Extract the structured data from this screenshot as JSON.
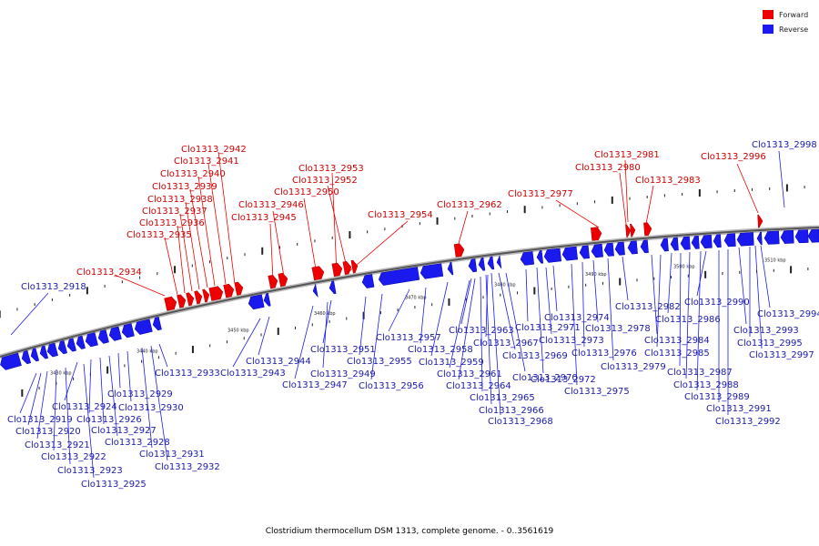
{
  "legend": {
    "forward": {
      "label": "Forward",
      "color": "#ee0000"
    },
    "reverse": {
      "label": "Reverse",
      "color": "#1a1aee"
    }
  },
  "caption": "Clostridium thermocellum DSM 1313, complete genome. - 0..3561619",
  "axis_ticks": [
    "3430 kbp",
    "3440 kbp",
    "3450 kbp",
    "3460 kbp",
    "3470 kbp",
    "3480 kbp",
    "3490 kbp",
    "3500 kbp",
    "3510 kbp"
  ],
  "genes_forward": [
    "Clo1313_2942",
    "Clo1313_2941",
    "Clo1313_2940",
    "Clo1313_2939",
    "Clo1313_2938",
    "Clo1313_2937",
    "Clo1313_2936",
    "Clo1313_2935",
    "Clo1313_2934",
    "Clo1313_2946",
    "Clo1313_2945",
    "Clo1313_2953",
    "Clo1313_2952",
    "Clo1313_2950",
    "Clo1313_2954",
    "Clo1313_2962",
    "Clo1313_2981",
    "Clo1313_2980",
    "Clo1313_2977",
    "Clo1313_2983",
    "Clo1313_2996"
  ],
  "genes_reverse": [
    "Clo1313_2998",
    "Clo1313_2918",
    "Clo1313_2919",
    "Clo1313_2920",
    "Clo1313_2921",
    "Clo1313_2922",
    "Clo1313_2923",
    "Clo1313_2924",
    "Clo1313_2925",
    "Clo1313_2926",
    "Clo1313_2927",
    "Clo1313_2928",
    "Clo1313_2929",
    "Clo1313_2930",
    "Clo1313_2931",
    "Clo1313_2932",
    "Clo1313_2933",
    "Clo1313_2943",
    "Clo1313_2944",
    "Clo1313_2947",
    "Clo1313_2949",
    "Clo1313_2951",
    "Clo1313_2955",
    "Clo1313_2956",
    "Clo1313_2957",
    "Clo1313_2958",
    "Clo1313_2959",
    "Clo1313_2961",
    "Clo1313_2963",
    "Clo1313_2964",
    "Clo1313_2965",
    "Clo1313_2966",
    "Clo1313_2967",
    "Clo1313_2968",
    "Clo1313_2969",
    "Clo1313_2970",
    "Clo1313_2971",
    "Clo1313_2972",
    "Clo1313_2973",
    "Clo1313_2974",
    "Clo1313_2975",
    "Clo1313_2976",
    "Clo1313_2978",
    "Clo1313_2979",
    "Clo1313_2982",
    "Clo1313_2984",
    "Clo1313_2985",
    "Clo1313_2986",
    "Clo1313_2987",
    "Clo1313_2988",
    "Clo1313_2989",
    "Clo1313_2990",
    "Clo1313_2991",
    "Clo1313_2992",
    "Clo1313_2993",
    "Clo1313_2994",
    "Clo1313_2995",
    "Clo1313_2997"
  ]
}
